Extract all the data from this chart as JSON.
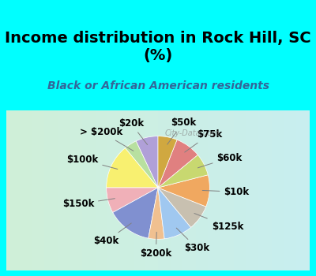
{
  "title": "Income distribution in Rock Hill, SC\n(%)",
  "subtitle": "Black or African American residents",
  "title_color": "#000000",
  "subtitle_color": "#336699",
  "background_color": "#00FFFF",
  "chart_bg_start": "#e8f5e9",
  "chart_bg_end": "#e0f0f0",
  "watermark": "City-Data.com",
  "labels": [
    "$20k",
    "> $200k",
    "$100k",
    "$150k",
    "$40k",
    "$200k",
    "$30k",
    "$125k",
    "$10k",
    "$60k",
    "$75k",
    "$50k"
  ],
  "values": [
    7,
    4,
    14,
    8,
    14,
    5,
    9,
    8,
    10,
    7,
    8,
    6
  ],
  "colors": [
    "#b0a0d8",
    "#b8e0a0",
    "#f8f070",
    "#f0b0b8",
    "#8090d0",
    "#f0c090",
    "#a0c8f0",
    "#c8c0b0",
    "#f0a860",
    "#c8d870",
    "#e08080",
    "#d0a840"
  ],
  "label_fontsize": 8.5,
  "title_fontsize": 14
}
